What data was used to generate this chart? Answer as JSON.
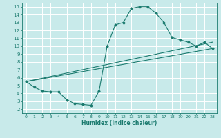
{
  "title": "",
  "xlabel": "Humidex (Indice chaleur)",
  "background_color": "#c8eaea",
  "grid_color": "#b0d8d8",
  "line_color": "#1a7a6e",
  "xlim": [
    -0.5,
    23.5
  ],
  "ylim": [
    1.5,
    15.5
  ],
  "xticks": [
    0,
    1,
    2,
    3,
    4,
    5,
    6,
    7,
    8,
    9,
    10,
    11,
    12,
    13,
    14,
    15,
    16,
    17,
    18,
    19,
    20,
    21,
    22,
    23
  ],
  "yticks": [
    2,
    3,
    4,
    5,
    6,
    7,
    8,
    9,
    10,
    11,
    12,
    13,
    14,
    15
  ],
  "line1_x": [
    0,
    1,
    2,
    3,
    4,
    5,
    6,
    7,
    8,
    9,
    10,
    11,
    12,
    13,
    14,
    15,
    16,
    17,
    18,
    19,
    20,
    21,
    22,
    23
  ],
  "line1_y": [
    5.5,
    4.8,
    4.3,
    4.2,
    4.2,
    3.2,
    2.7,
    2.6,
    2.5,
    4.3,
    10.0,
    12.7,
    13.0,
    14.8,
    15.0,
    15.0,
    14.2,
    13.0,
    11.1,
    10.8,
    10.5,
    10.0,
    10.5,
    9.7
  ],
  "line2_x": [
    0,
    23
  ],
  "line2_y": [
    5.5,
    10.5
  ],
  "line3_x": [
    0,
    23
  ],
  "line3_y": [
    5.5,
    9.7
  ]
}
